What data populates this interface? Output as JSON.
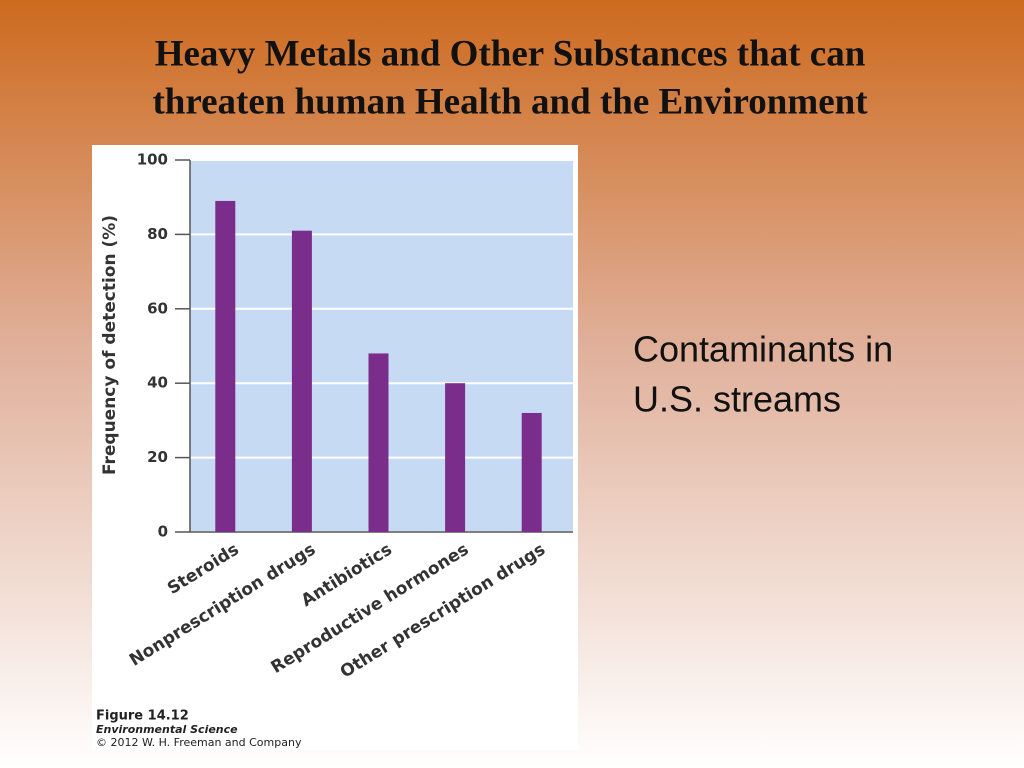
{
  "slide": {
    "title": [
      "Heavy Metals and Other Substances that can",
      "threaten human Health and the Environment"
    ],
    "caption": [
      "Contaminants in",
      "U.S. streams"
    ]
  },
  "chart_data": {
    "type": "bar",
    "ylabel": "Frequency of detection (%)",
    "categories": [
      "Steroids",
      "Nonprescription drugs",
      "Antibiotics",
      "Reproductive hormones",
      "Other prescription drugs"
    ],
    "values": [
      89,
      81,
      48,
      40,
      32
    ],
    "color": "#7b2d8b",
    "ylim": [
      0,
      100
    ],
    "yticks": [
      0,
      20,
      40,
      60,
      80,
      100
    ],
    "grid": true,
    "figure_credit": [
      "Figure 14.12",
      "Environmental Science",
      "© 2012 W. H. Freeman and Company"
    ]
  }
}
